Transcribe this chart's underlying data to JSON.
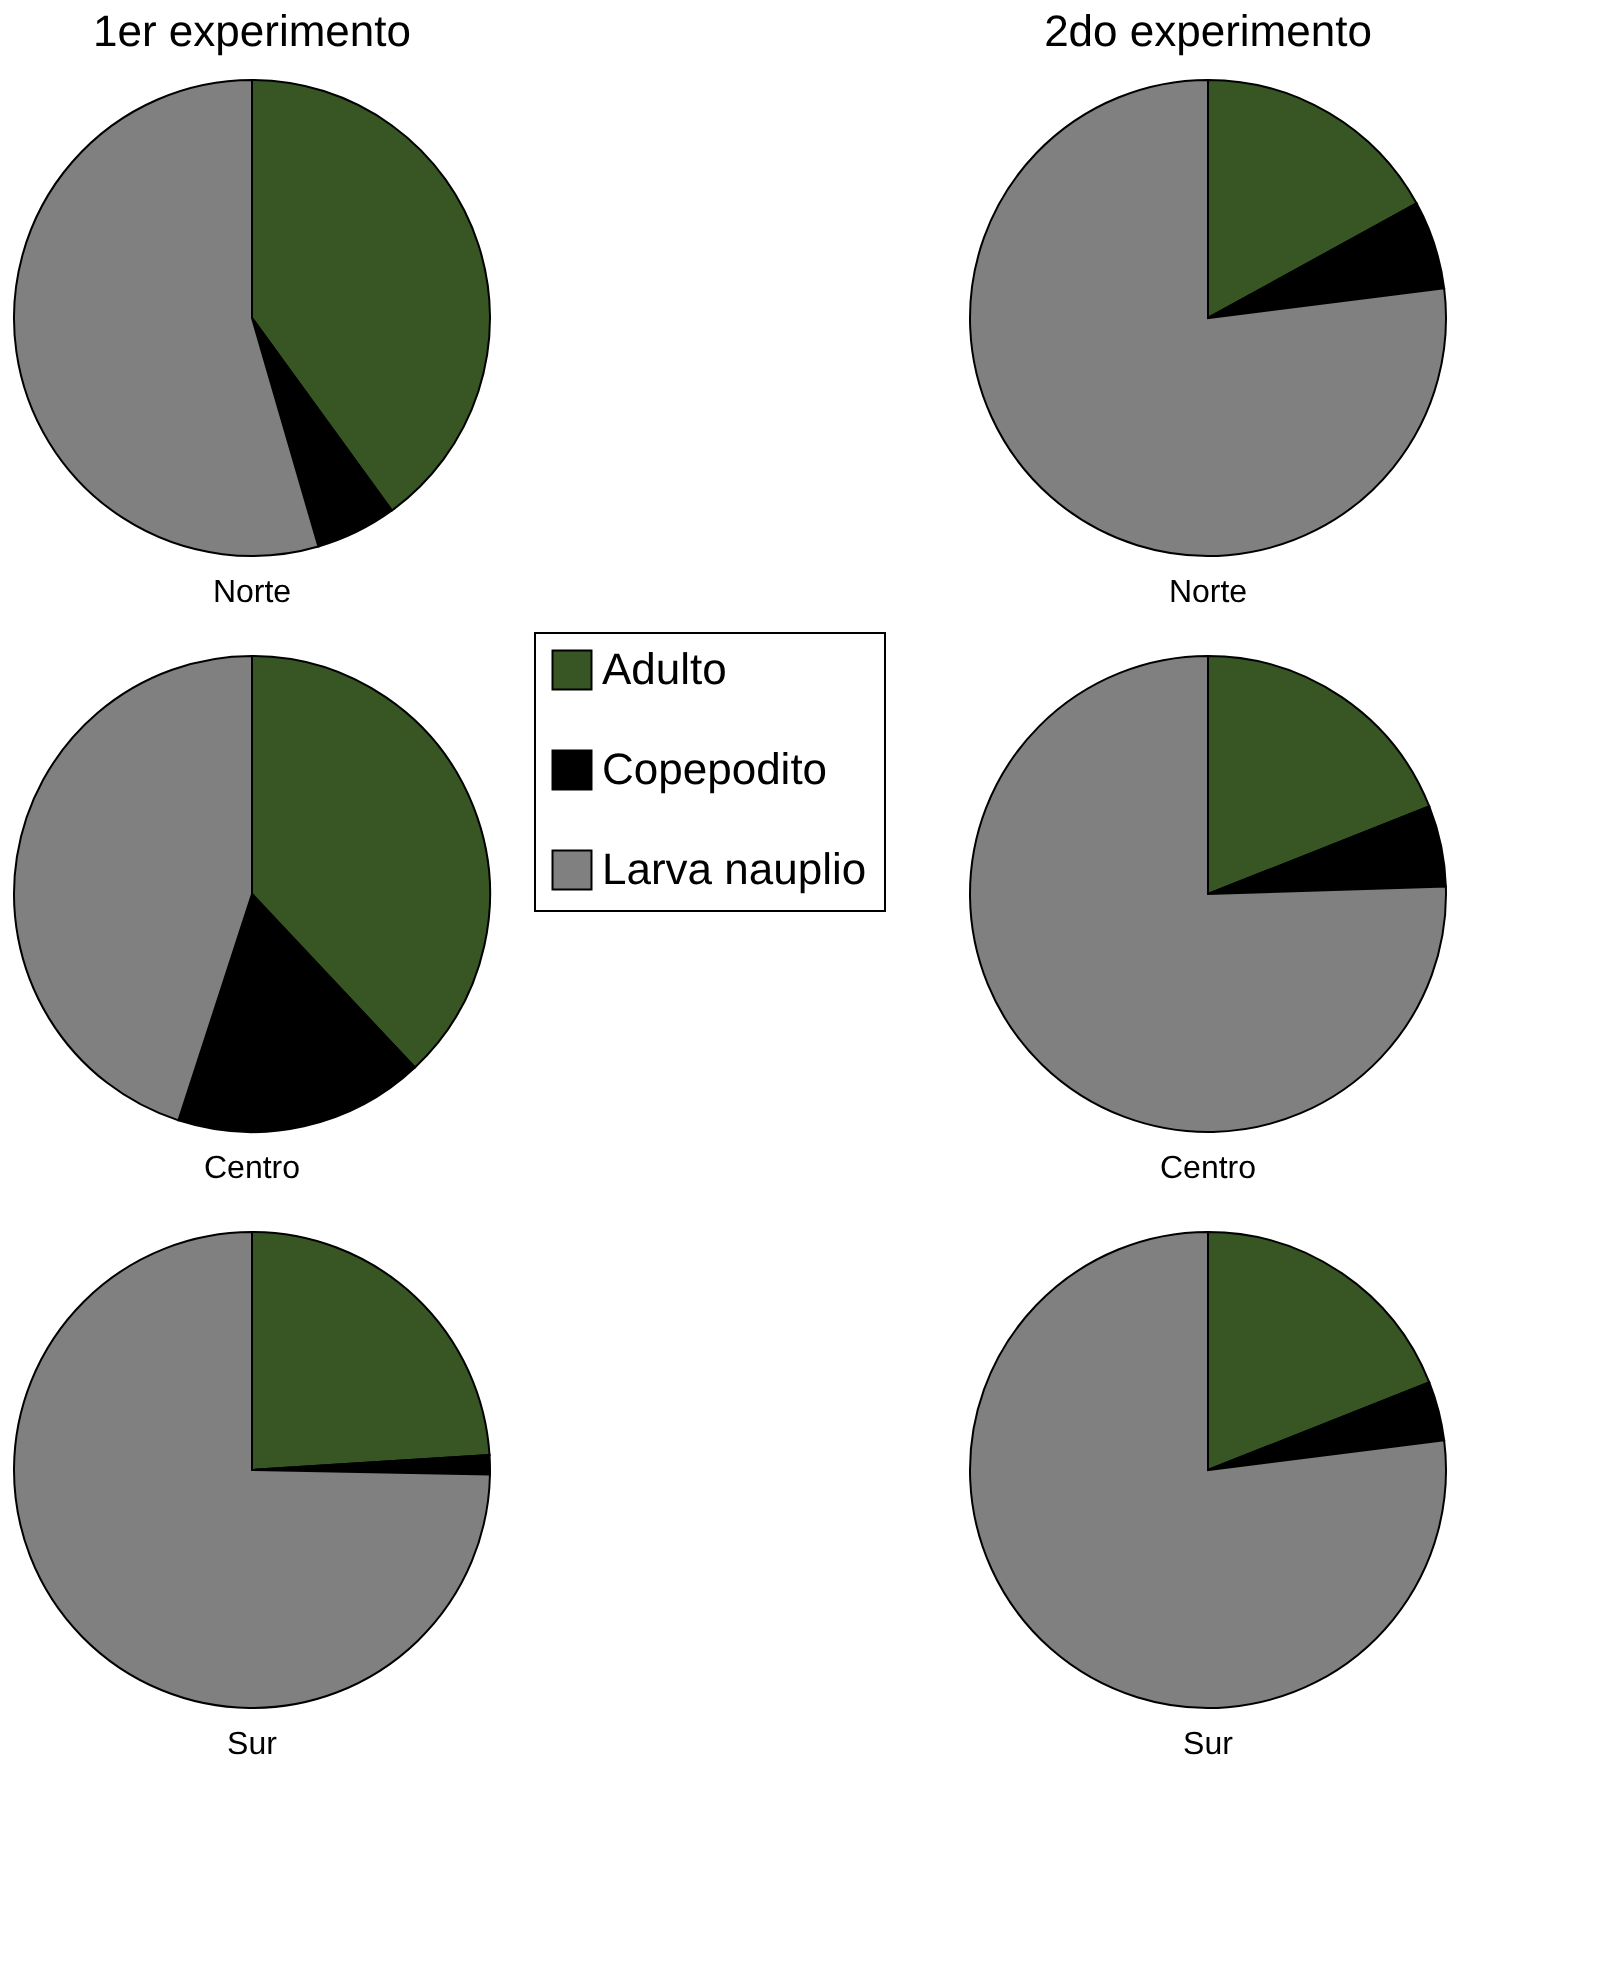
{
  "chart_data": [
    {
      "type": "pie",
      "title": "1er experimento",
      "xlabel": "Norte",
      "categories": [
        "Adulto",
        "Copepodito",
        "Larva nauplio"
      ],
      "values": [
        40,
        5.5,
        54.5
      ],
      "colors": [
        "#375623",
        "#000000",
        "#808080"
      ],
      "legend": "bottom right"
    },
    {
      "type": "pie",
      "title": "2do experimento",
      "xlabel": "Norte",
      "categories": [
        null,
        null,
        null
      ],
      "values": [
        17,
        6,
        77
      ],
      "colors": [
        "#375623",
        "#000000",
        "#808080"
      ]
    },
    {
      "type": "pie",
      "xlabel": "Centro",
      "categories": [
        null,
        null,
        null
      ],
      "values": [
        38,
        17,
        45
      ],
      "colors": [
        "#375623",
        "#000000",
        "#808080"
      ]
    },
    {
      "type": "pie",
      "xlabel": "Centro",
      "categories": [
        null,
        null,
        null
      ],
      "values": [
        19,
        5.5,
        75.5
      ],
      "colors": [
        "#375623",
        "#000000",
        "#808080"
      ]
    },
    {
      "type": "pie",
      "xlabel": "Sur",
      "categories": [
        null,
        null,
        null
      ],
      "values": [
        24,
        1.3,
        74.7
      ],
      "colors": [
        "#375623",
        "#000000",
        "#808080"
      ]
    },
    {
      "type": "pie",
      "xlabel": "Sur",
      "categories": [
        null,
        null,
        null
      ],
      "values": [
        19,
        4,
        77
      ],
      "colors": [
        "#375623",
        "#000000",
        "#808080"
      ]
    }
  ]
}
